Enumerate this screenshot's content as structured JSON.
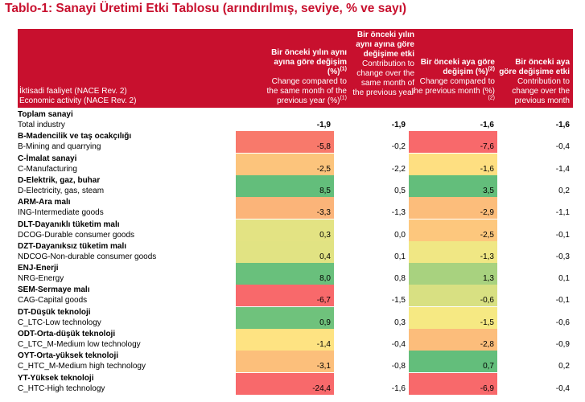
{
  "title": "Tablo-1: Sanayi Üretimi Etki Tablosu (arındırılmış, seviye, % ve sayı)",
  "header": {
    "activity_tr": "İktisadi faaliyet (NACE Rev. 2)",
    "activity_en": "Economic activity (NACE Rev. 2)",
    "col1_tr": "Bir önceki yılın aynı ayına göre değişim (%)",
    "col1_tr_sup": "(1)",
    "col1_en": "Change compared to the same month of the previous year (%)",
    "col1_en_sup": "(1)",
    "col2_tr": "Bir önceki yılın aynı ayına göre değişime etki",
    "col2_en": "Contribution to change over the same month of the previous year",
    "col3_tr": "Bir önceki aya göre değişim (%)",
    "col3_tr_sup": "(2)",
    "col3_en": "Change compared to the previous month (%)",
    "col3_en_sup": "(2)",
    "col4_tr": "Bir önceki aya göre değişime etki",
    "col4_en": "Contribution to change over the previous month"
  },
  "rows": [
    {
      "cat": "Toplam sanayi",
      "sub": "Total industry",
      "v1": "-1,9",
      "v2": "-1,9",
      "v3": "-1,6",
      "v4": "-1,6",
      "c1": "",
      "c3": ""
    },
    {
      "cat": "B-Madencilik ve taş ocakçılığı",
      "sub": "B-Mining and quarrying",
      "v1": "-5,8",
      "v2": "-0,2",
      "v3": "-7,6",
      "v4": "-0,4",
      "c1": "#f8796b",
      "c3": "#f8696b"
    },
    {
      "cat": "C-İmalat sanayi",
      "sub": "C-Manufacturing",
      "v1": "-2,5",
      "v2": "-2,2",
      "v3": "-1,6",
      "v4": "-1,4",
      "c1": "#fcc47c",
      "c3": "#fedf81"
    },
    {
      "cat": "D-Elektrik, gaz, buhar",
      "sub": "D-Electricity, gas, steam",
      "v1": "8,5",
      "v2": "0,5",
      "v3": "3,5",
      "v4": "0,2",
      "c1": "#63be7b",
      "c3": "#63be7b"
    },
    {
      "cat": "ARM-Ara malı",
      "sub": "ING-Intermediate goods",
      "v1": "-3,3",
      "v2": "-1,3",
      "v3": "-2,9",
      "v4": "-1,1",
      "c1": "#fbb479",
      "c3": "#fcbd7b"
    },
    {
      "cat": "DLT-Dayanıklı tüketim malı",
      "sub": "DCOG-Durable consumer goods",
      "v1": "0,3",
      "v2": "0,0",
      "v3": "-2,5",
      "v4": "-0,1",
      "c1": "#e3e383",
      "c3": "#fdc77d"
    },
    {
      "cat": "DZT-Dayanıksız tüketim malı",
      "sub": "NDCOG-Non-durable consumer goods",
      "v1": "0,4",
      "v2": "0,1",
      "v3": "-1,3",
      "v4": "-0,3",
      "c1": "#e1e383",
      "c3": "#f0e784"
    },
    {
      "cat": "ENJ-Enerji",
      "sub": "NRG-Energy",
      "v1": "8,0",
      "v2": "0,8",
      "v3": "1,3",
      "v4": "0,1",
      "c1": "#69c07c",
      "c3": "#a8d27f"
    },
    {
      "cat": "SEM-Sermaye malı",
      "sub": "CAG-Capital goods",
      "v1": "-6,7",
      "v2": "-1,5",
      "v3": "-0,6",
      "v4": "-0,1",
      "c1": "#f8696b",
      "c3": "#d8e082"
    },
    {
      "cat": "DT-Düşük teknoloji",
      "sub": "C_LTC-Low technology",
      "v1": "0,9",
      "v2": "0,3",
      "v3": "-1,5",
      "v4": "-0,6",
      "c1": "#6fc27c",
      "c3": "#f6e983"
    },
    {
      "cat": "ODT-Orta-düşük teknoloji",
      "sub": "C_LTC_M-Medium low technology",
      "v1": "-1,4",
      "v2": "-0,4",
      "v3": "-2,8",
      "v4": "-0,9",
      "c1": "#fee382",
      "c3": "#fcbd7b"
    },
    {
      "cat": "OYT-Orta-yüksek teknoloji",
      "sub": "C_HTC_M-Medium high technology",
      "v1": "-3,1",
      "v2": "-0,8",
      "v3": "0,7",
      "v4": "0,2",
      "c1": "#fcbf7b",
      "c3": "#63be7b"
    },
    {
      "cat": "YT-Yüksek teknoloji",
      "sub": "C_HTC-High technology",
      "v1": "-24,4",
      "v2": "-1,6",
      "v3": "-6,9",
      "v4": "-0,4",
      "c1": "#f8696b",
      "c3": "#f8696b"
    }
  ]
}
